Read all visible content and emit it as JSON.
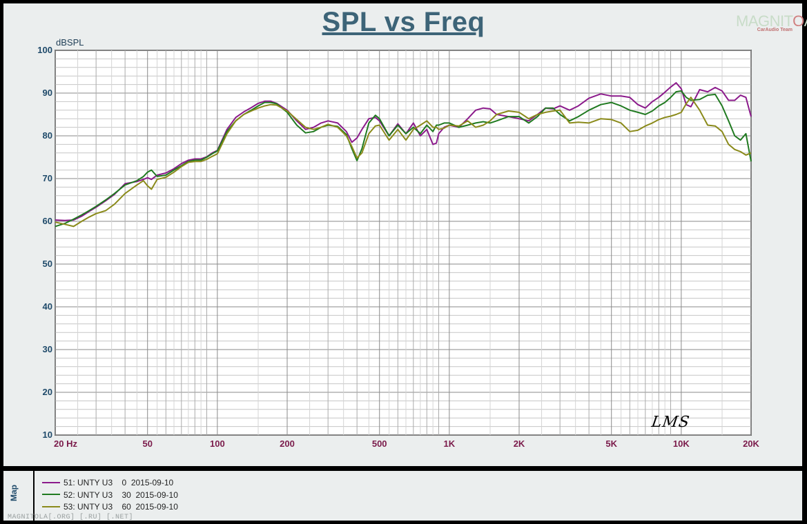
{
  "title": "SPL vs Freq",
  "logo": {
    "text": "MAGNITOLA",
    "subtitle": "CarAudio Team"
  },
  "signature": "LMS",
  "watermark": "MAGNITOLA[.ORG] [.RU] [.NET]",
  "map_label": "Map",
  "chart_data": {
    "type": "line",
    "title": "SPL vs Freq",
    "ylabel": "dBSPL",
    "xlabel": "",
    "x_scale": "log",
    "xlim": [
      20,
      20000
    ],
    "ylim": [
      10,
      100
    ],
    "y_ticks": [
      10,
      20,
      30,
      40,
      50,
      60,
      70,
      80,
      90,
      100
    ],
    "x_ticks": [
      {
        "value": 20,
        "label": "20  Hz"
      },
      {
        "value": 50,
        "label": "50"
      },
      {
        "value": 100,
        "label": "100"
      },
      {
        "value": 200,
        "label": "200"
      },
      {
        "value": 500,
        "label": "500"
      },
      {
        "value": 1000,
        "label": "1K"
      },
      {
        "value": 2000,
        "label": "2K"
      },
      {
        "value": 5000,
        "label": "5K"
      },
      {
        "value": 10000,
        "label": "10K"
      },
      {
        "value": 20000,
        "label": "20K"
      }
    ],
    "grid": true,
    "legend_position": "bottom",
    "series": [
      {
        "name": "51: UNTY U3    0  2015-09-10",
        "color": "#8b1a8b",
        "x": [
          20,
          22,
          24,
          26,
          28,
          30,
          33,
          36,
          40,
          45,
          48,
          50,
          52,
          55,
          60,
          65,
          70,
          75,
          80,
          85,
          90,
          95,
          100,
          110,
          120,
          130,
          140,
          150,
          160,
          170,
          180,
          200,
          220,
          240,
          260,
          280,
          300,
          330,
          360,
          380,
          400,
          420,
          450,
          480,
          500,
          550,
          600,
          650,
          700,
          750,
          800,
          850,
          880,
          900,
          950,
          1000,
          1100,
          1200,
          1300,
          1400,
          1500,
          1600,
          1800,
          2000,
          2200,
          2400,
          2600,
          2800,
          3000,
          3300,
          3600,
          4000,
          4500,
          5000,
          5500,
          6000,
          6500,
          7000,
          7500,
          8000,
          8500,
          9000,
          9500,
          10000,
          10500,
          11000,
          12000,
          13000,
          14000,
          15000,
          16000,
          17000,
          18000,
          19000,
          20000
        ],
        "values": [
          60.3,
          60.2,
          60.3,
          61.2,
          62.3,
          63.3,
          64.8,
          66.3,
          68.8,
          69.3,
          69.8,
          70.2,
          69.8,
          70.8,
          71.3,
          72.3,
          73.5,
          74.3,
          74.6,
          74.6,
          75.1,
          76.0,
          76.6,
          81.5,
          84.3,
          85.6,
          86.6,
          87.6,
          88.1,
          88.1,
          87.6,
          86.0,
          83.5,
          81.5,
          82.0,
          83.0,
          83.5,
          83.0,
          81.0,
          78.5,
          79.5,
          81.5,
          84.0,
          84.3,
          83.5,
          80.0,
          82.8,
          80.5,
          83.0,
          80.0,
          81.5,
          78.0,
          78.3,
          80.5,
          82.0,
          82.5,
          82.0,
          84.0,
          86.0,
          86.5,
          86.3,
          85.0,
          84.5,
          84.0,
          83.5,
          85.0,
          86.5,
          86.3,
          87.0,
          86.0,
          87.0,
          88.8,
          89.8,
          89.3,
          89.3,
          89.0,
          87.3,
          86.5,
          88.0,
          89.0,
          90.2,
          91.4,
          92.4,
          91.0,
          87.3,
          86.8,
          90.8,
          90.3,
          91.3,
          90.5,
          88.3,
          88.3,
          89.5,
          89.0,
          84.5
        ]
      },
      {
        "name": "52: UNTY U3    30  2015-09-10",
        "color": "#207a20",
        "x": [
          20,
          22,
          24,
          26,
          28,
          30,
          33,
          36,
          40,
          45,
          48,
          50,
          52,
          55,
          60,
          65,
          70,
          75,
          80,
          85,
          90,
          95,
          100,
          110,
          120,
          130,
          140,
          150,
          160,
          170,
          180,
          200,
          220,
          240,
          260,
          280,
          300,
          330,
          360,
          380,
          400,
          420,
          450,
          480,
          500,
          550,
          600,
          650,
          700,
          750,
          800,
          850,
          880,
          900,
          950,
          1000,
          1100,
          1200,
          1300,
          1400,
          1500,
          1600,
          1800,
          2000,
          2200,
          2400,
          2600,
          2800,
          3000,
          3300,
          3600,
          4000,
          4500,
          5000,
          5500,
          6000,
          6500,
          7000,
          7500,
          8000,
          8500,
          9000,
          9500,
          10000,
          10500,
          11000,
          12000,
          13000,
          14000,
          15000,
          16000,
          17000,
          18000,
          19000,
          20000
        ],
        "values": [
          58.8,
          59.5,
          60.5,
          61.5,
          62.5,
          63.5,
          65.0,
          66.5,
          68.5,
          69.5,
          70.5,
          71.5,
          72.0,
          70.5,
          70.8,
          72.0,
          73.0,
          74.0,
          74.3,
          74.3,
          75.0,
          75.8,
          76.5,
          81.0,
          83.5,
          85.0,
          86.0,
          87.0,
          87.8,
          87.8,
          87.5,
          85.5,
          82.5,
          80.7,
          81.0,
          82.0,
          82.5,
          82.2,
          80.3,
          77.0,
          74.2,
          77.0,
          83.0,
          84.8,
          84.0,
          80.0,
          82.5,
          80.5,
          82.0,
          80.5,
          82.5,
          81.0,
          82.5,
          82.5,
          83.0,
          83.0,
          82.0,
          82.5,
          83.0,
          83.3,
          83.0,
          83.5,
          84.5,
          84.5,
          83.0,
          84.5,
          86.5,
          86.5,
          85.0,
          83.5,
          84.5,
          86.0,
          87.3,
          87.8,
          87.0,
          86.0,
          85.5,
          85.0,
          85.8,
          87.0,
          87.8,
          89.0,
          90.3,
          90.5,
          89.0,
          88.3,
          88.5,
          89.5,
          89.7,
          87.0,
          83.5,
          80.0,
          79.0,
          80.5,
          74.0
        ]
      },
      {
        "name": "53: UNTY U3    60  2015-09-10",
        "color": "#8a8a1a",
        "x": [
          20,
          22,
          24,
          26,
          28,
          30,
          33,
          36,
          40,
          45,
          48,
          50,
          52,
          55,
          60,
          65,
          70,
          75,
          80,
          85,
          90,
          95,
          100,
          110,
          120,
          130,
          140,
          150,
          160,
          170,
          180,
          200,
          220,
          240,
          260,
          280,
          300,
          330,
          360,
          380,
          400,
          420,
          450,
          480,
          500,
          550,
          600,
          650,
          700,
          750,
          800,
          850,
          880,
          900,
          950,
          1000,
          1100,
          1200,
          1300,
          1400,
          1500,
          1600,
          1800,
          2000,
          2200,
          2400,
          2600,
          2800,
          3000,
          3300,
          3600,
          4000,
          4500,
          5000,
          5500,
          6000,
          6500,
          7000,
          7500,
          8000,
          8500,
          9000,
          9500,
          10000,
          10500,
          11000,
          12000,
          13000,
          14000,
          15000,
          16000,
          17000,
          18000,
          19000,
          20000
        ],
        "values": [
          59.8,
          59.3,
          58.8,
          60.0,
          61.0,
          61.8,
          62.5,
          64.0,
          66.5,
          68.5,
          69.5,
          68.3,
          67.5,
          69.8,
          70.3,
          71.5,
          72.8,
          73.8,
          74.0,
          74.0,
          74.5,
          75.2,
          75.8,
          80.5,
          83.5,
          85.0,
          85.8,
          86.5,
          87.0,
          87.3,
          87.2,
          85.8,
          83.8,
          82.0,
          81.5,
          82.0,
          82.7,
          82.0,
          80.0,
          77.5,
          74.8,
          76.0,
          80.5,
          82.3,
          82.5,
          79.0,
          81.5,
          79.0,
          81.5,
          82.5,
          83.5,
          82.0,
          82.0,
          81.5,
          81.8,
          82.5,
          82.3,
          83.5,
          82.0,
          82.5,
          83.5,
          85.0,
          85.8,
          85.5,
          84.0,
          85.0,
          85.5,
          85.8,
          86.0,
          83.0,
          83.2,
          83.0,
          84.0,
          83.8,
          83.0,
          81.0,
          81.3,
          82.3,
          83.0,
          83.8,
          84.3,
          84.6,
          85.0,
          85.5,
          87.5,
          89.0,
          86.0,
          82.5,
          82.3,
          81.0,
          78.0,
          76.8,
          76.3,
          75.5,
          76.0
        ]
      }
    ]
  }
}
